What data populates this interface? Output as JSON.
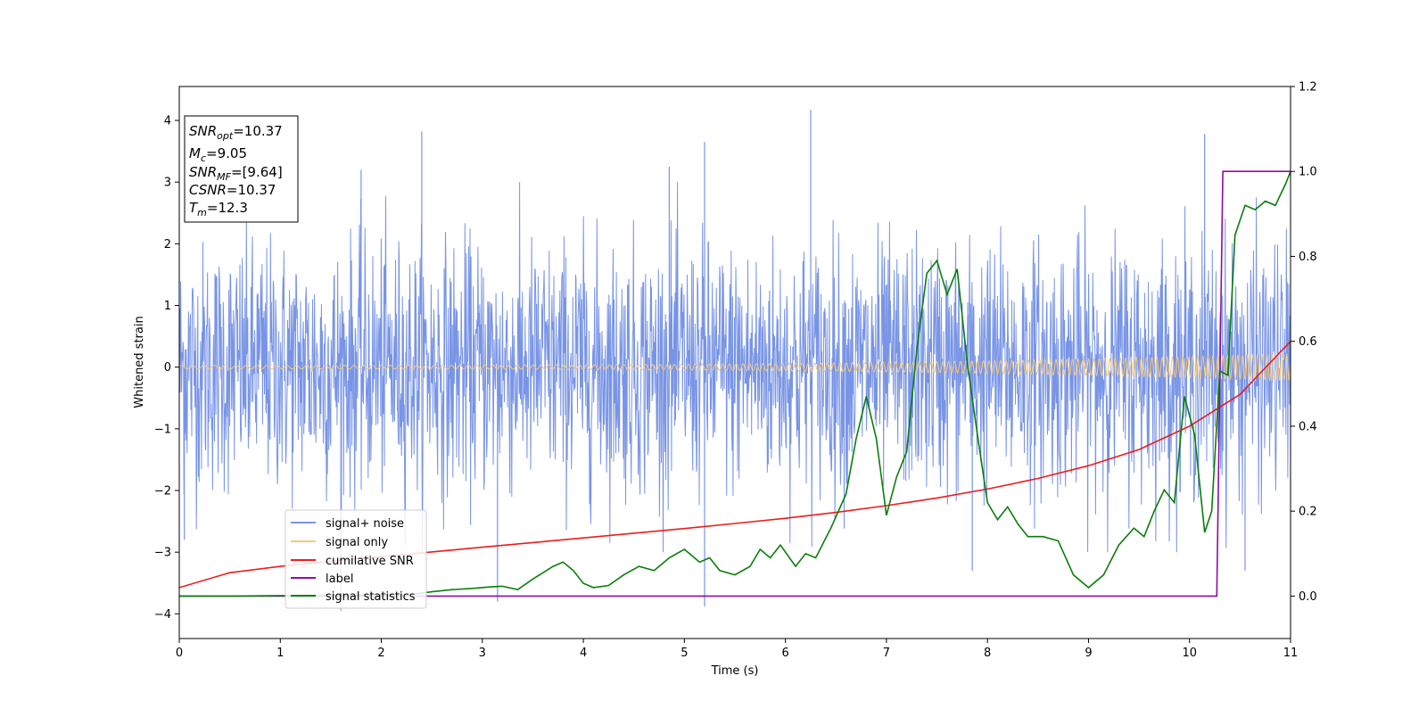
{
  "chart_data": {
    "type": "line",
    "xlabel": "Time (s)",
    "ylabel": "Whitened strain",
    "xlim": [
      0,
      11
    ],
    "ylim": [
      -4.4,
      4.55
    ],
    "y2lim": [
      -0.1,
      1.2
    ],
    "x_ticks": [
      0,
      1,
      2,
      3,
      4,
      5,
      6,
      7,
      8,
      9,
      10,
      11
    ],
    "y_ticks": [
      -4,
      -3,
      -2,
      -1,
      0,
      1,
      2,
      3,
      4
    ],
    "y2_ticks": [
      0.0,
      0.2,
      0.4,
      0.6,
      0.8,
      1.0,
      1.2
    ],
    "y_tick_labels": [
      "−4",
      "−3",
      "−2",
      "−1",
      "0",
      "1",
      "2",
      "3",
      "4"
    ],
    "y2_tick_labels": [
      "0.0",
      "0.2",
      "0.4",
      "0.6",
      "0.8",
      "1.0",
      "1.2"
    ],
    "grid": false,
    "legend_placement": "lower-left",
    "annotation": {
      "lines": [
        {
          "label": "SNR",
          "sub": "opt",
          "value": "=10.37"
        },
        {
          "label": "M",
          "sub": "c",
          "value": "=9.05"
        },
        {
          "label": "SNR",
          "sub": "MF",
          "value": "=[9.64]"
        },
        {
          "label": "CSNR",
          "sub": "",
          "value": "=10.37"
        },
        {
          "label": "T",
          "sub": "m",
          "value": "=12.3"
        }
      ]
    },
    "series": [
      {
        "name": "signal+ noise",
        "color": "#7894e6",
        "axis": "left",
        "kind": "noise",
        "noise_sigma": 1.0,
        "n_samples": 2400,
        "spikes": [
          {
            "x": 1.6,
            "y": -3.95
          },
          {
            "x": 2.4,
            "y": 3.82
          },
          {
            "x": 3.15,
            "y": -3.8
          },
          {
            "x": 5.2,
            "y": 3.65
          },
          {
            "x": 5.2,
            "y": -3.88
          },
          {
            "x": 6.25,
            "y": 4.17
          },
          {
            "x": 7.85,
            "y": -3.3
          },
          {
            "x": 10.15,
            "y": 3.78
          },
          {
            "x": 10.55,
            "y": -3.3
          },
          {
            "x": 0.05,
            "y": -2.8
          },
          {
            "x": 1.8,
            "y": 3.2
          },
          {
            "x": 4.85,
            "y": 3.25
          }
        ]
      },
      {
        "name": "signal only",
        "color": "#f5c87a",
        "axis": "left",
        "kind": "chirp",
        "amplitude_start": 0.03,
        "amplitude_end": 0.22
      },
      {
        "name": "cumilative SNR",
        "color": "#ee1c1c",
        "axis": "right",
        "x": [
          0,
          0.5,
          1,
          1.5,
          2,
          2.5,
          3,
          3.5,
          4,
          4.5,
          5,
          5.5,
          6,
          6.5,
          7,
          7.5,
          8,
          8.5,
          9,
          9.5,
          10,
          10.5,
          11
        ],
        "y": [
          0.02,
          0.055,
          0.07,
          0.082,
          0.093,
          0.104,
          0.115,
          0.126,
          0.137,
          0.148,
          0.159,
          0.171,
          0.183,
          0.197,
          0.213,
          0.231,
          0.252,
          0.277,
          0.307,
          0.345,
          0.4,
          0.475,
          0.6
        ]
      },
      {
        "name": "label",
        "color": "#8b0ea0",
        "axis": "right",
        "x": [
          0,
          10.27,
          10.33,
          11
        ],
        "y": [
          0,
          0,
          1,
          1
        ]
      },
      {
        "name": "signal statistics",
        "color": "#0a7d0a",
        "axis": "right",
        "x": [
          0,
          0.5,
          1,
          1.5,
          2,
          2.3,
          2.5,
          2.7,
          2.9,
          3.1,
          3.2,
          3.35,
          3.5,
          3.7,
          3.8,
          3.9,
          4.0,
          4.1,
          4.25,
          4.4,
          4.55,
          4.7,
          4.85,
          5.0,
          5.15,
          5.25,
          5.35,
          5.5,
          5.65,
          5.75,
          5.85,
          5.95,
          6.1,
          6.2,
          6.3,
          6.45,
          6.6,
          6.7,
          6.8,
          6.9,
          7.0,
          7.1,
          7.2,
          7.3,
          7.4,
          7.5,
          7.6,
          7.7,
          7.8,
          7.9,
          8.0,
          8.1,
          8.2,
          8.3,
          8.4,
          8.55,
          8.7,
          8.85,
          9.0,
          9.15,
          9.3,
          9.45,
          9.55,
          9.65,
          9.75,
          9.85,
          9.95,
          10.05,
          10.15,
          10.22,
          10.3,
          10.38,
          10.45,
          10.55,
          10.65,
          10.75,
          10.85,
          10.95,
          11
        ],
        "y": [
          0,
          0.0,
          0.001,
          0.002,
          0.003,
          0.004,
          0.01,
          0.015,
          0.018,
          0.022,
          0.023,
          0.015,
          0.04,
          0.07,
          0.08,
          0.06,
          0.03,
          0.02,
          0.025,
          0.05,
          0.07,
          0.06,
          0.09,
          0.11,
          0.08,
          0.09,
          0.06,
          0.05,
          0.07,
          0.11,
          0.09,
          0.12,
          0.07,
          0.1,
          0.09,
          0.16,
          0.24,
          0.37,
          0.47,
          0.37,
          0.19,
          0.28,
          0.34,
          0.58,
          0.76,
          0.79,
          0.71,
          0.77,
          0.55,
          0.38,
          0.22,
          0.18,
          0.21,
          0.17,
          0.14,
          0.14,
          0.13,
          0.05,
          0.02,
          0.05,
          0.12,
          0.16,
          0.14,
          0.2,
          0.25,
          0.22,
          0.47,
          0.38,
          0.15,
          0.2,
          0.53,
          0.52,
          0.85,
          0.92,
          0.91,
          0.93,
          0.92,
          0.97,
          1.0
        ]
      }
    ]
  }
}
